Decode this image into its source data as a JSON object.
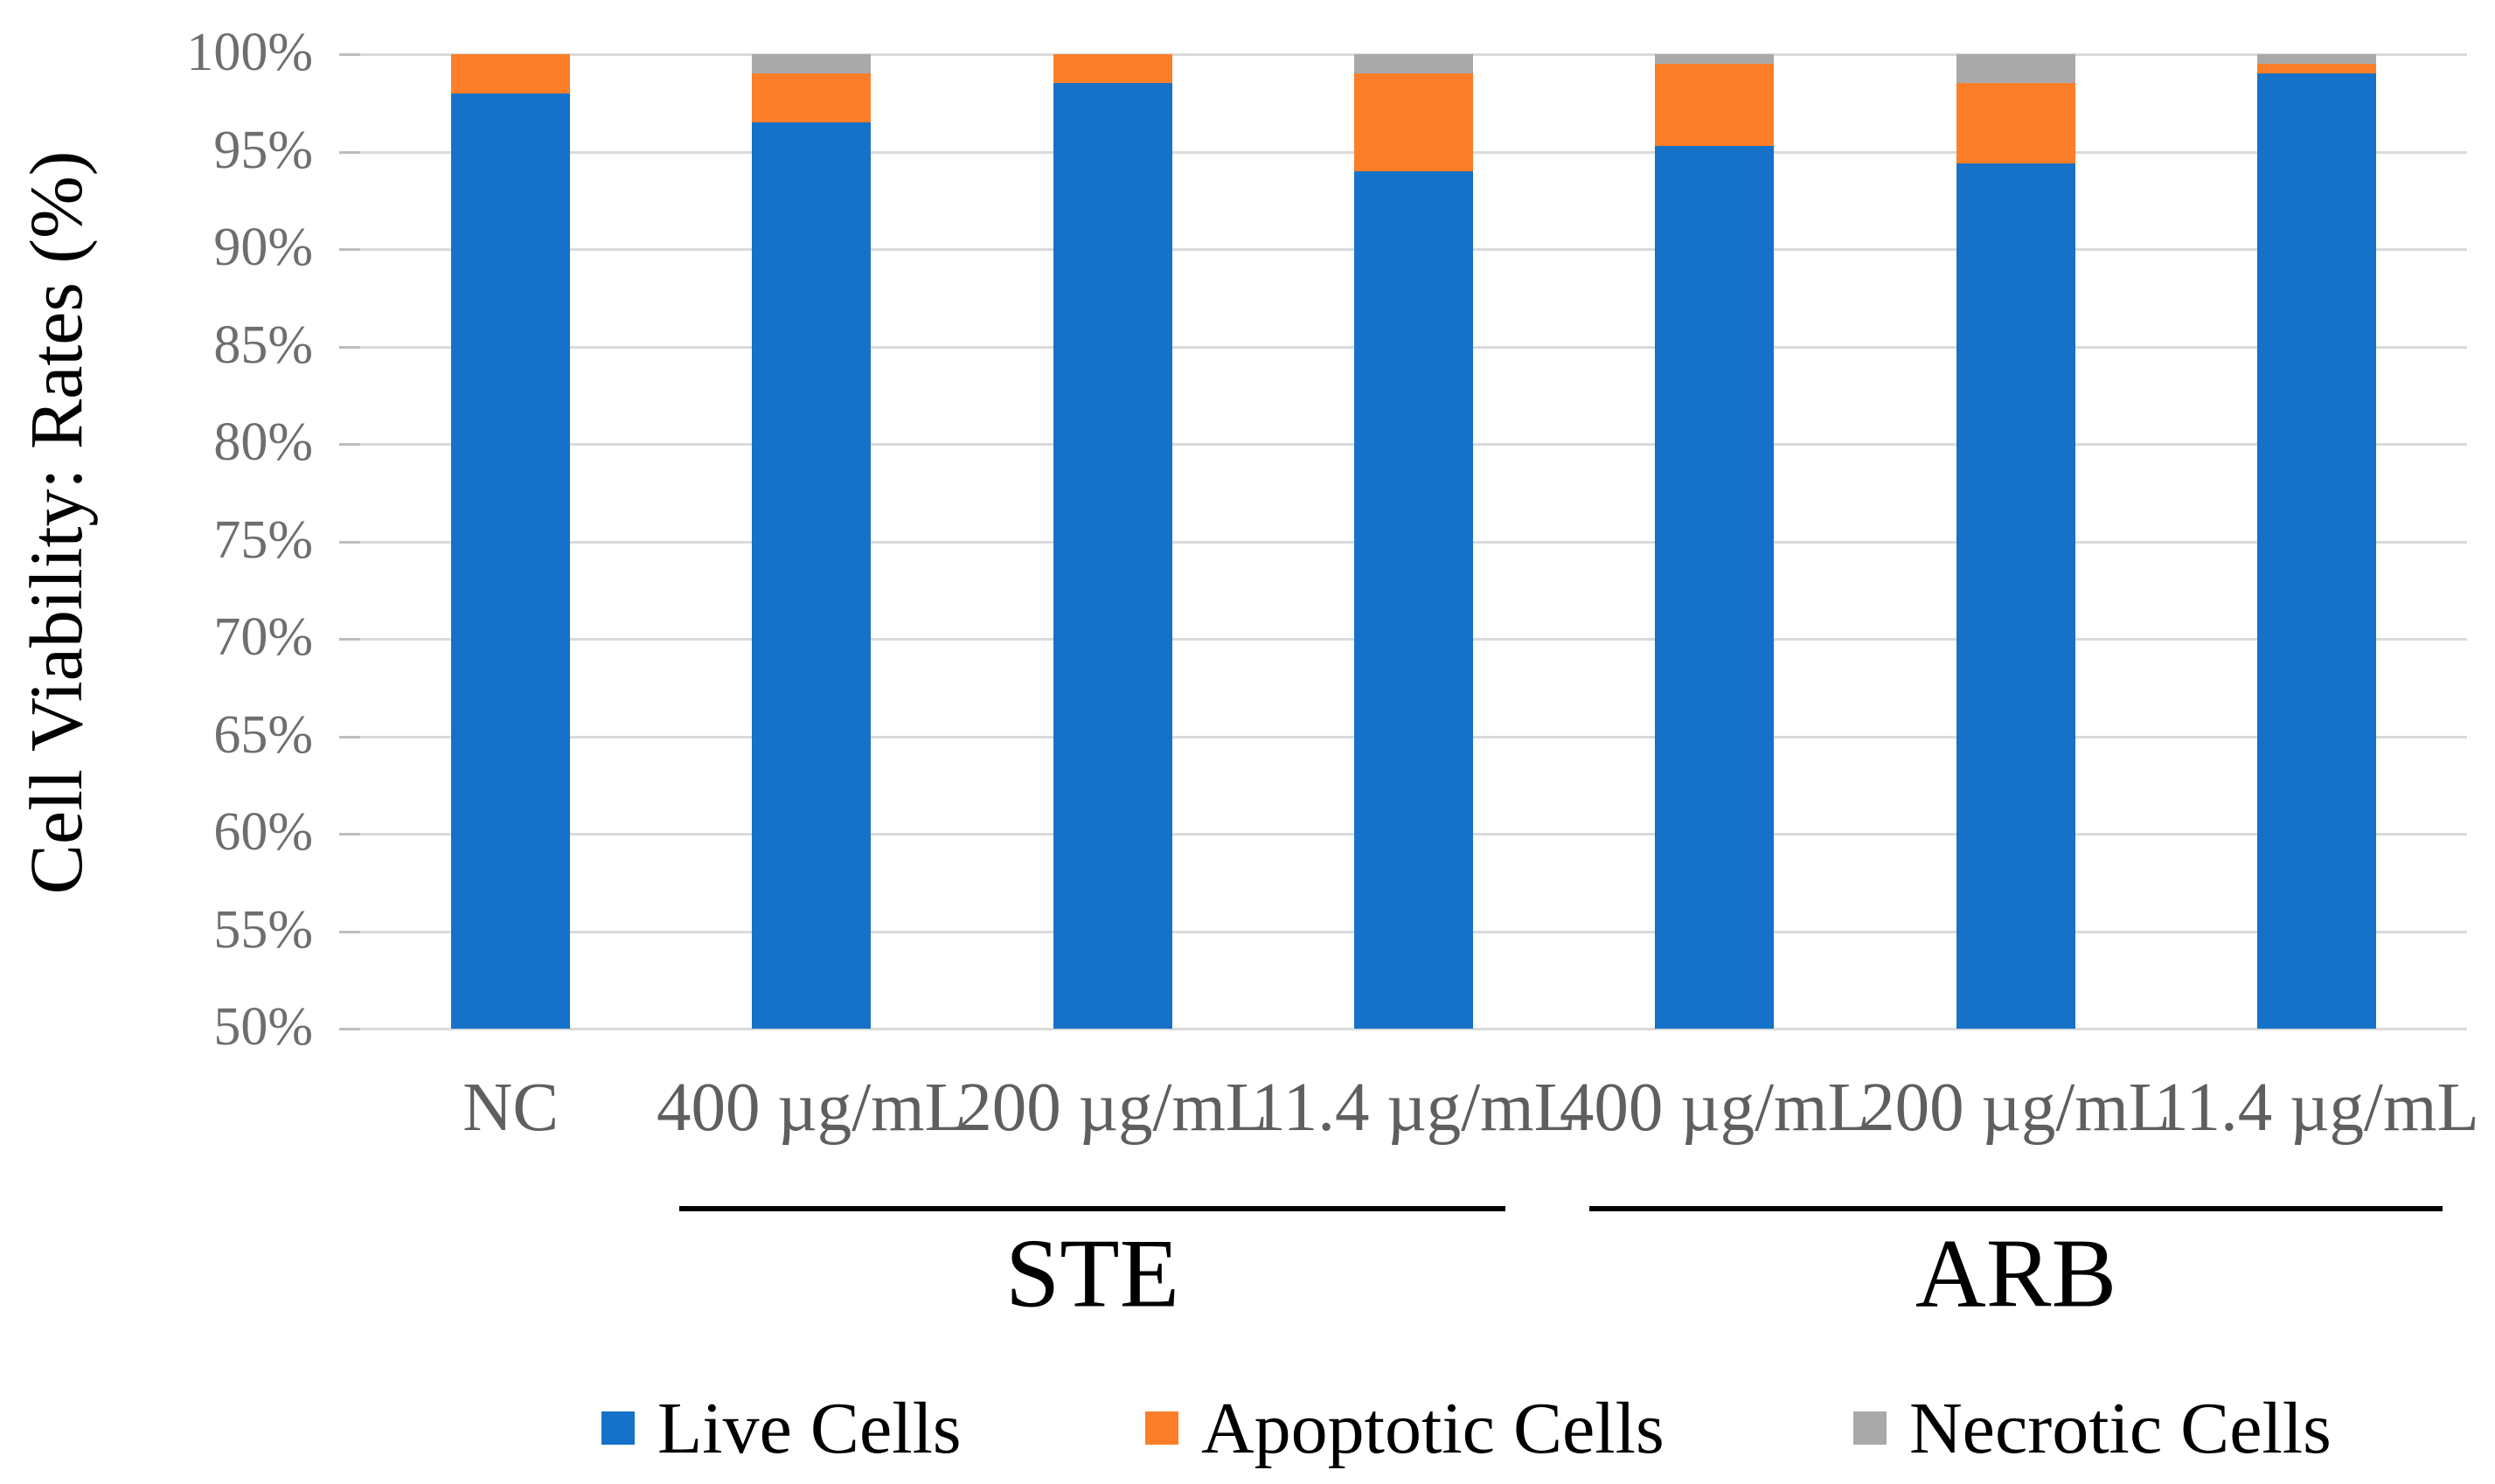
{
  "chart_data": {
    "type": "bar",
    "stacked": true,
    "title": "",
    "ylabel": "Cell Viability: Rates (%)",
    "xlabel": "",
    "ylim": [
      50,
      100
    ],
    "ytick_step": 5,
    "ytick_labels": [
      "50%",
      "55%",
      "60%",
      "65%",
      "70%",
      "75%",
      "80%",
      "85%",
      "90%",
      "95%",
      "100%"
    ],
    "grid": true,
    "legend_position": "bottom",
    "categories": [
      "NC",
      "400 µg/mL",
      "200 µg/mL",
      "11.4 µg/mL",
      "400 µg/mL",
      "200 µg/mL",
      "11.4 µg/mL"
    ],
    "groups": [
      {
        "label": "STE",
        "start_index": 1,
        "end_index": 3
      },
      {
        "label": "ARB",
        "start_index": 4,
        "end_index": 6
      }
    ],
    "series": [
      {
        "name": "Live Cells",
        "color": "#1671C8",
        "values": [
          98.0,
          96.5,
          98.5,
          94.0,
          95.3,
          94.4,
          99.0
        ]
      },
      {
        "name": "Apoptotic Cells",
        "color": "#FD7E28",
        "values": [
          2.0,
          2.5,
          1.5,
          5.0,
          4.2,
          4.1,
          0.5
        ]
      },
      {
        "name": "Necrotic Cells",
        "color": "#A9A9A9",
        "values": [
          0.0,
          1.0,
          0.0,
          1.0,
          0.5,
          1.5,
          0.5
        ]
      }
    ],
    "colors": {
      "gridline": "#DADADA",
      "tick_label": "#6E6E6E",
      "category_label": "#5F5F5F",
      "text": "#000000"
    }
  }
}
